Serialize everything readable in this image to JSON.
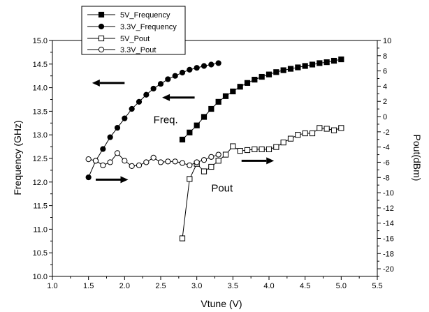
{
  "chart_data": {
    "type": "line",
    "title": "",
    "xlabel": "Vtune (V)",
    "ylabel": "Frequency (GHz)",
    "y2label": "Pout(dBm)",
    "xlim": [
      1.0,
      5.5
    ],
    "ylim": [
      10.0,
      15.0
    ],
    "y2lim": [
      -21,
      10
    ],
    "x_ticks": [
      "1.0",
      "1.5",
      "2.0",
      "2.5",
      "3.0",
      "3.5",
      "4.0",
      "4.5",
      "5.0",
      "5.5"
    ],
    "y_ticks": [
      "10.0",
      "10.5",
      "11.0",
      "11.5",
      "12.0",
      "12.5",
      "13.0",
      "13.5",
      "14.0",
      "14.5",
      "15.0"
    ],
    "y2_ticks": [
      "-20",
      "-18",
      "-16",
      "-14",
      "-12",
      "-10",
      "-8",
      "-6",
      "-4",
      "-2",
      "0",
      "2",
      "4",
      "6",
      "8",
      "10"
    ],
    "grid": false,
    "legend_position": "top-left",
    "series": [
      {
        "name": "5V_Frequency",
        "axis": "left",
        "marker": "square-filled",
        "x": [
          2.8,
          2.9,
          3.0,
          3.1,
          3.2,
          3.3,
          3.4,
          3.5,
          3.6,
          3.7,
          3.8,
          3.9,
          4.0,
          4.1,
          4.2,
          4.3,
          4.4,
          4.5,
          4.6,
          4.7,
          4.8,
          4.9,
          5.0
        ],
        "values": [
          12.9,
          13.05,
          13.2,
          13.38,
          13.55,
          13.7,
          13.82,
          13.92,
          14.02,
          14.1,
          14.17,
          14.23,
          14.28,
          14.33,
          14.37,
          14.4,
          14.43,
          14.46,
          14.49,
          14.52,
          14.54,
          14.57,
          14.6
        ]
      },
      {
        "name": "3.3V_Frequency",
        "axis": "left",
        "marker": "circle-filled",
        "x": [
          1.5,
          1.6,
          1.7,
          1.8,
          1.9,
          2.0,
          2.1,
          2.2,
          2.3,
          2.4,
          2.5,
          2.6,
          2.7,
          2.8,
          2.9,
          3.0,
          3.1,
          3.2,
          3.3
        ],
        "values": [
          12.1,
          12.45,
          12.7,
          12.95,
          13.15,
          13.35,
          13.55,
          13.7,
          13.85,
          13.98,
          14.08,
          14.18,
          14.25,
          14.32,
          14.38,
          14.42,
          14.46,
          14.49,
          14.52
        ]
      },
      {
        "name": "5V_Pout",
        "axis": "right",
        "marker": "square-open",
        "x": [
          2.8,
          2.9,
          3.0,
          3.1,
          3.2,
          3.3,
          3.4,
          3.5,
          3.6,
          3.7,
          3.8,
          3.9,
          4.0,
          4.1,
          4.2,
          4.3,
          4.4,
          4.5,
          4.6,
          4.7,
          4.8,
          4.9,
          5.0
        ],
        "values": [
          -16,
          -8.2,
          -6.2,
          -7.2,
          -6.6,
          -5.8,
          -5.0,
          -3.9,
          -4.5,
          -4.4,
          -4.3,
          -4.3,
          -4.3,
          -4.0,
          -3.4,
          -2.9,
          -2.4,
          -2.2,
          -2.2,
          -1.5,
          -1.6,
          -1.8,
          -1.5
        ]
      },
      {
        "name": "3.3V_Pout",
        "axis": "right",
        "marker": "circle-open",
        "x": [
          1.5,
          1.6,
          1.7,
          1.8,
          1.9,
          2.0,
          2.1,
          2.2,
          2.3,
          2.4,
          2.5,
          2.6,
          2.7,
          2.8,
          2.9,
          3.0,
          3.1,
          3.2,
          3.3
        ],
        "values": [
          -5.6,
          -5.8,
          -6.4,
          -6.0,
          -4.8,
          -5.8,
          -6.5,
          -6.4,
          -6.0,
          -5.4,
          -6.0,
          -5.9,
          -5.9,
          -6.1,
          -6.4,
          -6.0,
          -5.7,
          -5.3,
          -5.0
        ]
      }
    ],
    "annotations": [
      {
        "text": "Freq.",
        "x": 2.4,
        "y": 13.25,
        "axis": "left"
      },
      {
        "text": "Pout",
        "x": 3.2,
        "y": 11.8,
        "axis": "left"
      }
    ],
    "arrows": [
      {
        "direction": "left",
        "from_x": 2.0,
        "to_x": 1.55,
        "y": 14.1,
        "axis": "left"
      },
      {
        "direction": "left",
        "from_x": 2.97,
        "to_x": 2.52,
        "y": 13.79,
        "axis": "left"
      },
      {
        "direction": "right",
        "from_x": 1.6,
        "to_x": 2.05,
        "y": 12.05,
        "axis": "left"
      },
      {
        "direction": "right",
        "from_x": 3.62,
        "to_x": 4.07,
        "y": 12.45,
        "axis": "left"
      }
    ]
  }
}
